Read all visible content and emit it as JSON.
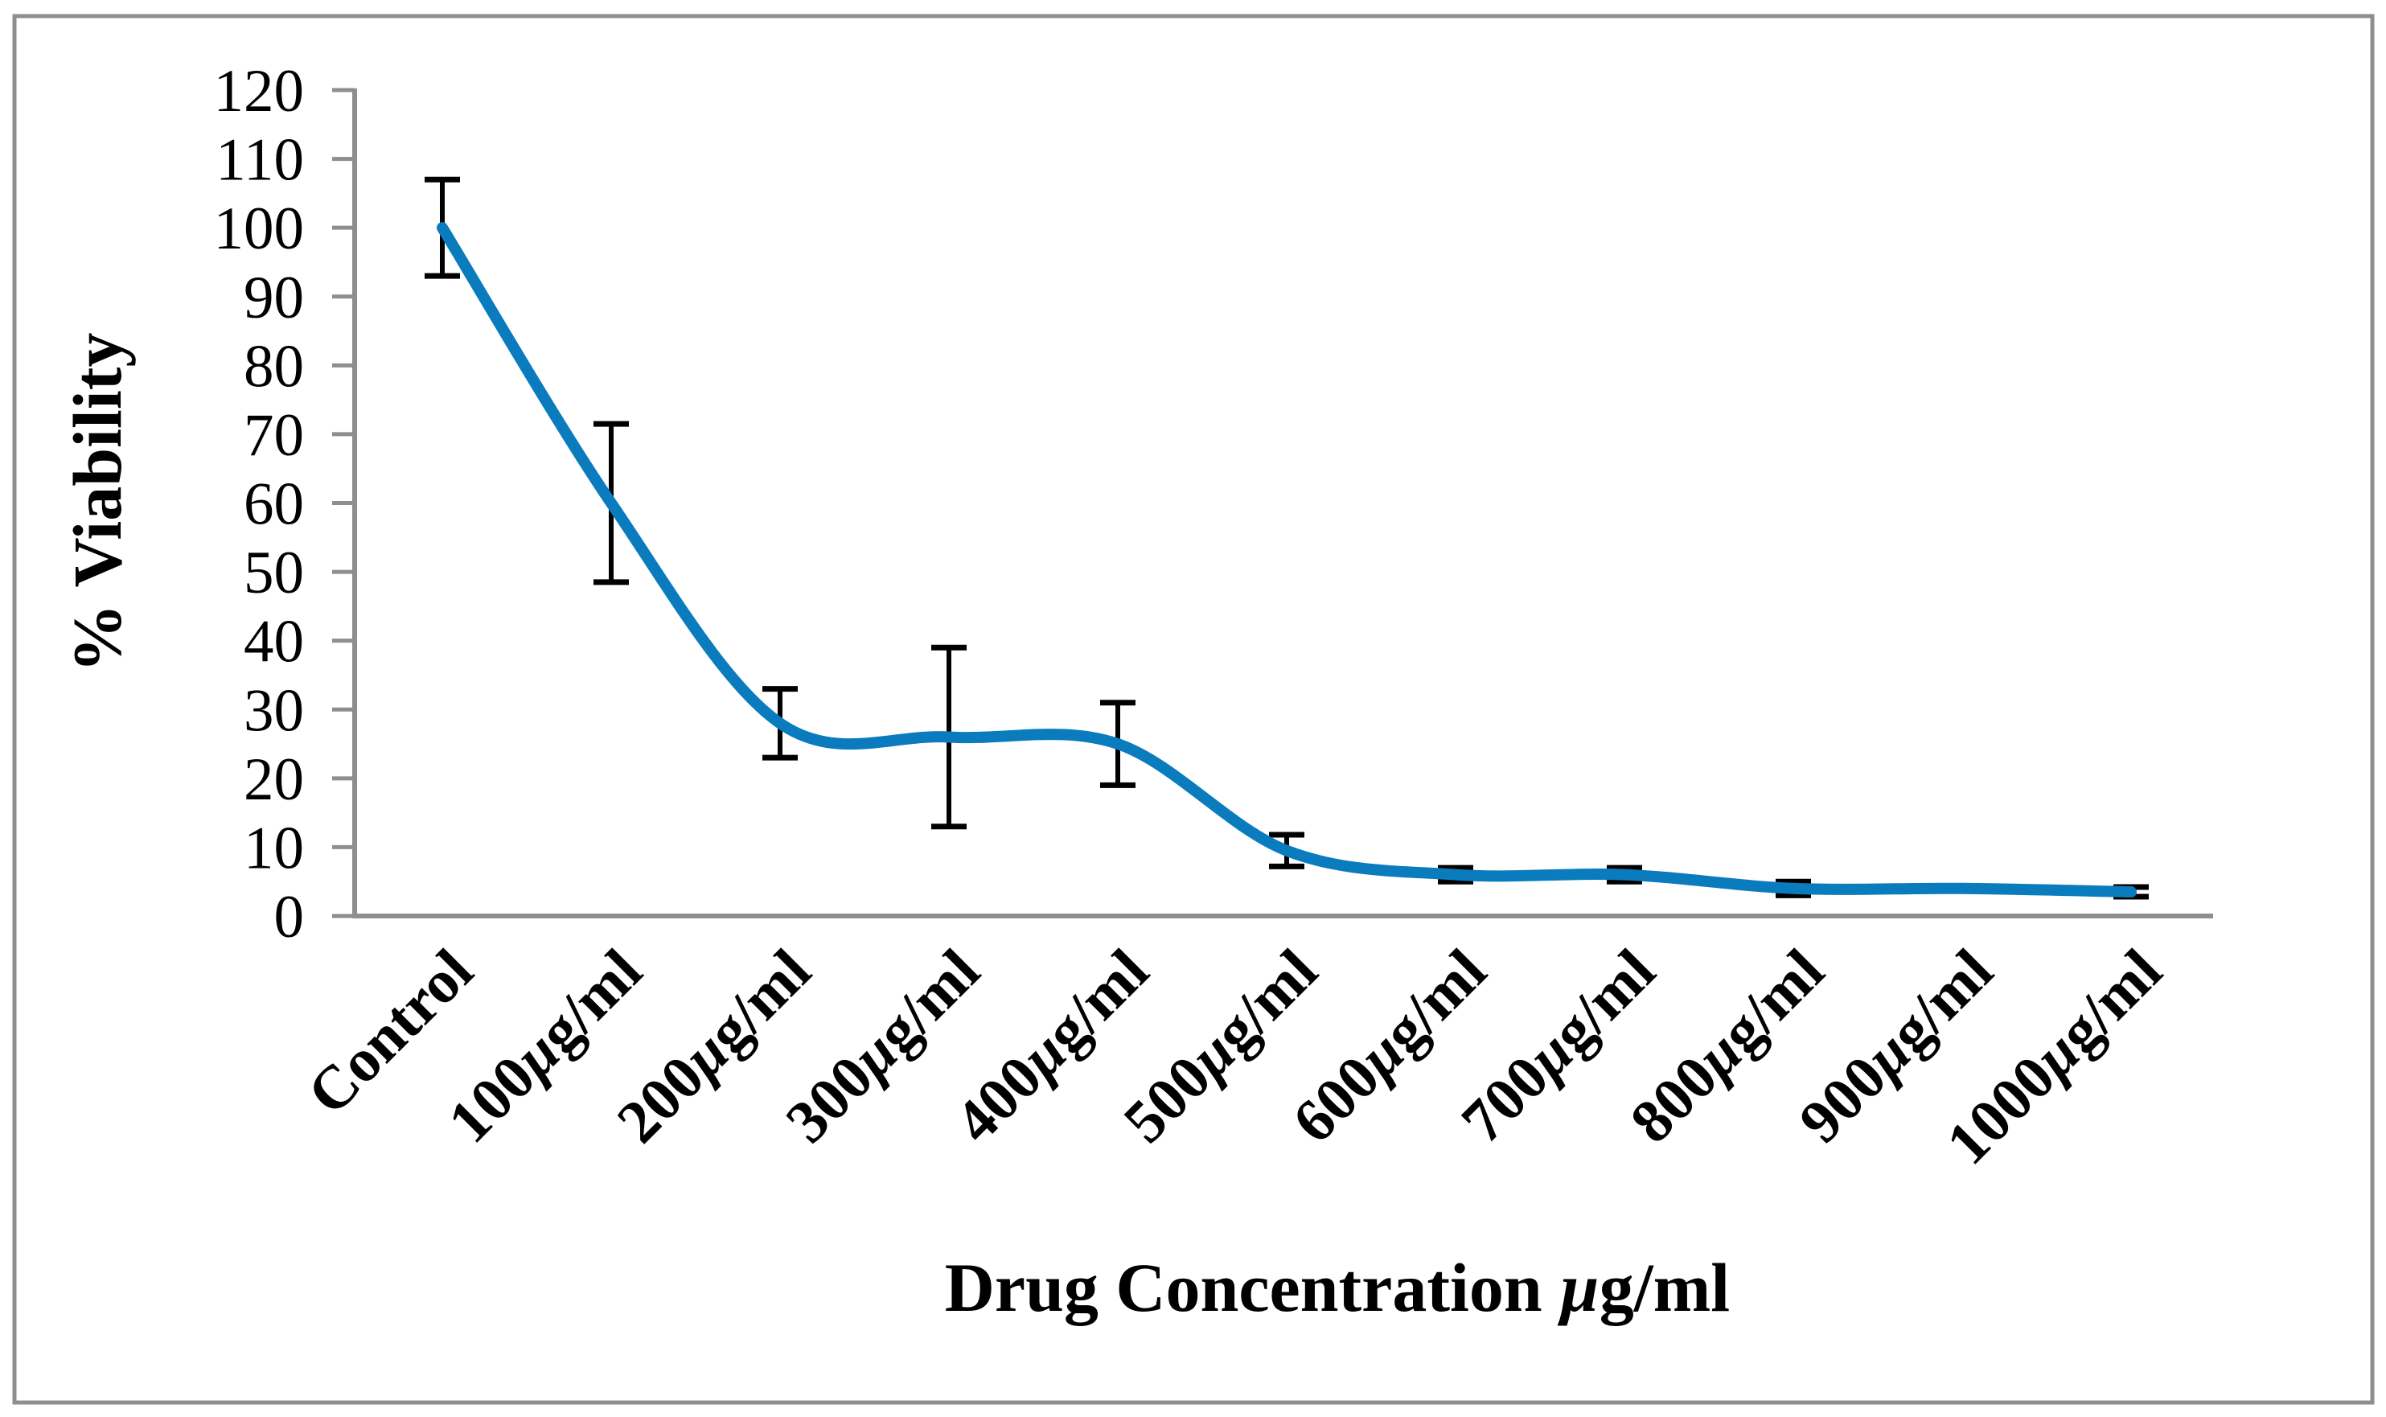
{
  "figure": {
    "border_color": "#8e8e8e",
    "background_color": "#ffffff"
  },
  "chart_data": {
    "type": "line",
    "title": "",
    "xlabel": "Drug Concentration µg/ml",
    "ylabel": "% Viability",
    "categories": [
      "Control",
      "100µg/ml",
      "200µg/ml",
      "300µg/ml",
      "400µg/ml",
      "500µg/ml",
      "600µg/ml",
      "700µg/ml",
      "800µg/ml",
      "900µg/ml",
      "1000µg/ml"
    ],
    "series": [
      {
        "name": "% Viability",
        "values": [
          100,
          60,
          28,
          26,
          25,
          9.5,
          6,
          6,
          4,
          4,
          3.5
        ],
        "error_plus": [
          7,
          11.5,
          5,
          13,
          6,
          2.3,
          1,
          1,
          1,
          0,
          0.7
        ],
        "error_minus": [
          7,
          11.5,
          5,
          13,
          6,
          2.3,
          1,
          1,
          1,
          0,
          0.7
        ],
        "color": "#0a7cbe",
        "smooth": true,
        "marker": "none"
      }
    ],
    "ylim": [
      0,
      120
    ],
    "y_ticks": [
      0,
      10,
      20,
      30,
      40,
      50,
      60,
      70,
      80,
      90,
      100,
      110,
      120
    ],
    "x_tick_rotation_deg": 45,
    "grid": false,
    "legend": "none",
    "axis_color": "#8e8e8e",
    "error_bar_color": "#000000"
  }
}
